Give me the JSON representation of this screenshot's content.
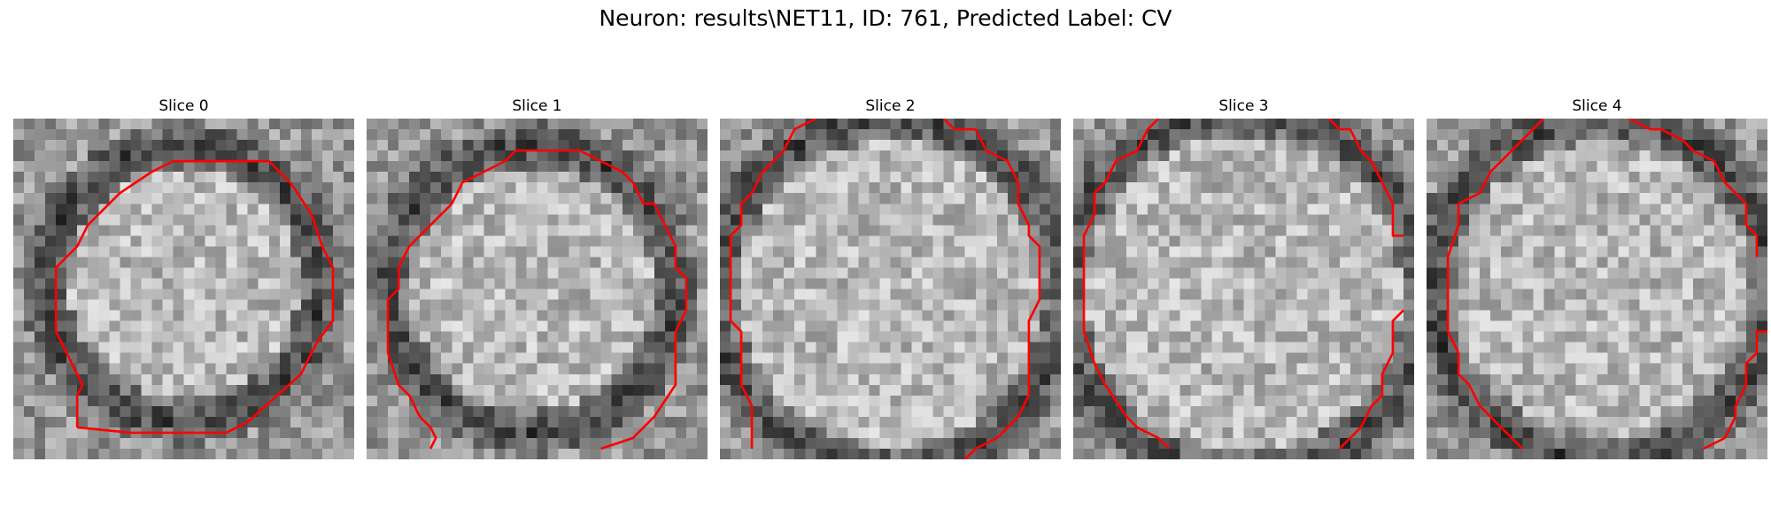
{
  "figure": {
    "title": "Neuron: results\\NET11, ID: 761, Predicted Label: CV"
  },
  "slices": [
    {
      "label": "Slice 0"
    },
    {
      "label": "Slice 1"
    },
    {
      "label": "Slice 2"
    },
    {
      "label": "Slice 3"
    },
    {
      "label": "Slice 4"
    }
  ],
  "colors": {
    "contour": "#ff0000",
    "background": "#ffffff"
  }
}
